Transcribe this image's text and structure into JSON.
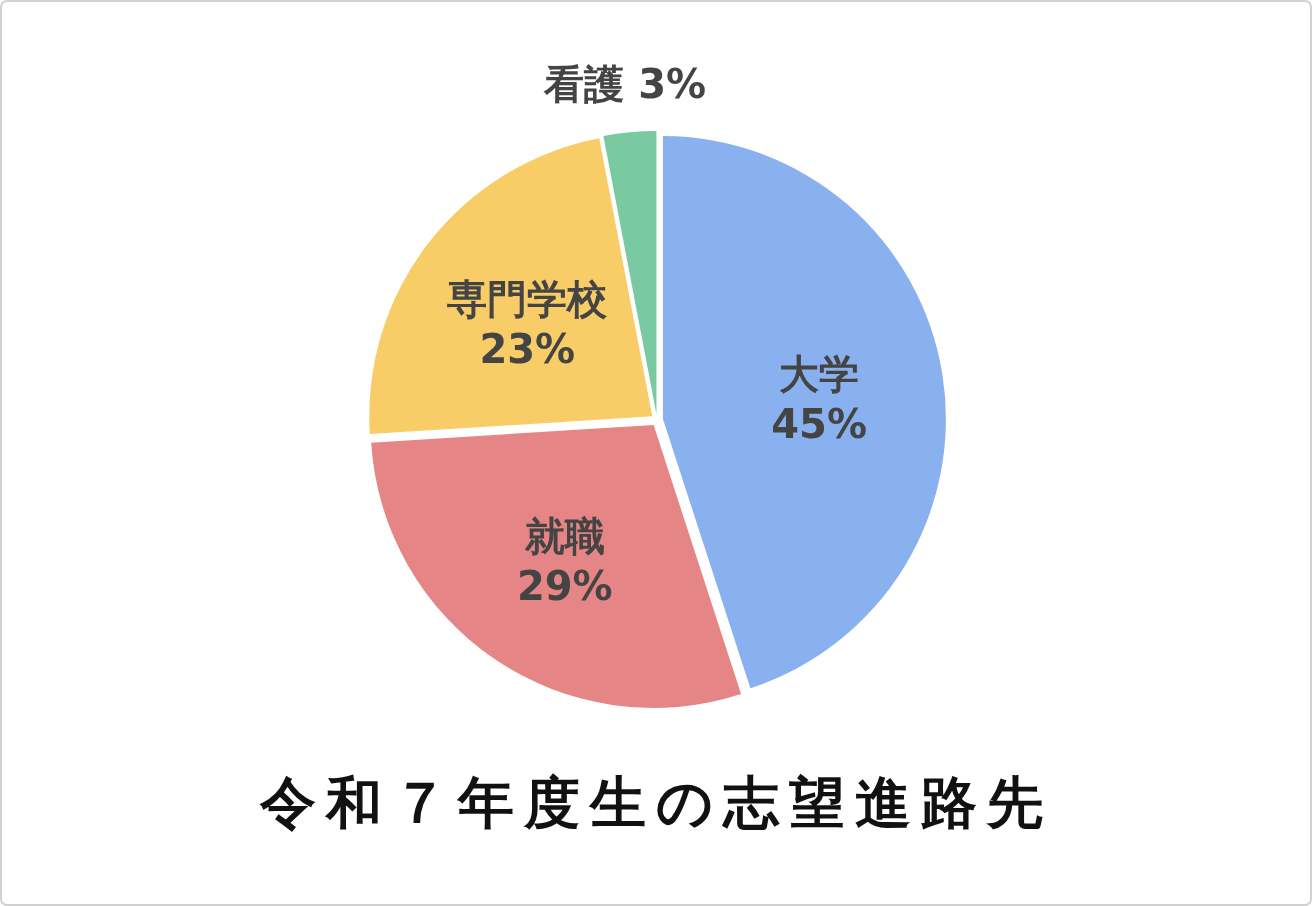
{
  "chart_data": {
    "type": "pie",
    "title": "令和７年度生の志望進路先",
    "categories": [
      "大学",
      "就職",
      "専門学校",
      "看護"
    ],
    "values": [
      45,
      29,
      23,
      3
    ],
    "value_labels": [
      "45%",
      "29%",
      "23%",
      "3%"
    ],
    "colors": [
      "#6d9eeb",
      "#e06666",
      "#f6c142",
      "#57bb8a"
    ],
    "legend": false
  }
}
